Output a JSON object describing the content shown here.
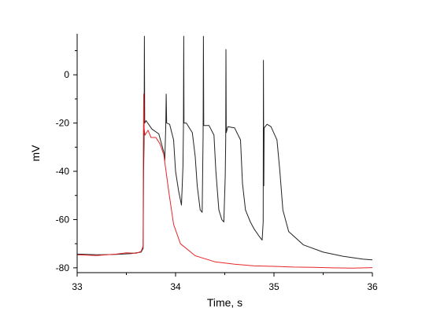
{
  "chart_data": {
    "type": "line",
    "xlabel": "Time, s",
    "ylabel": "mV",
    "xlim": [
      33,
      36
    ],
    "ylim": [
      -82,
      17
    ],
    "xticks": [
      33,
      34,
      35,
      36
    ],
    "yticks": [
      -80,
      -60,
      -40,
      -20,
      0
    ],
    "grid": false,
    "legend": "none",
    "colors": {
      "series1": "#222222",
      "series2": "#e8262a",
      "axis": "#000000"
    },
    "series": [
      {
        "color": "#222222",
        "points": [
          [
            33.0,
            -74.3
          ],
          [
            33.2,
            -74.6
          ],
          [
            33.4,
            -74.4
          ],
          [
            33.55,
            -74.1
          ],
          [
            33.65,
            -73.5
          ],
          [
            33.67,
            -72.0
          ],
          [
            33.675,
            -40.0
          ],
          [
            33.68,
            -28.0
          ],
          [
            33.683,
            16.0
          ],
          [
            33.686,
            -20.0
          ],
          [
            33.7,
            -19.0
          ],
          [
            33.76,
            -22.5
          ],
          [
            33.83,
            -24.5
          ],
          [
            33.88,
            -32.0
          ],
          [
            33.89,
            -35.5
          ],
          [
            33.9,
            -22.0
          ],
          [
            33.905,
            -8.0
          ],
          [
            33.91,
            -20.0
          ],
          [
            33.94,
            -20.5
          ],
          [
            33.98,
            -27.0
          ],
          [
            34.0,
            -40.0
          ],
          [
            34.03,
            -48.0
          ],
          [
            34.06,
            -54.0
          ],
          [
            34.075,
            -38.0
          ],
          [
            34.08,
            -22.0
          ],
          [
            34.083,
            16.0
          ],
          [
            34.086,
            -20.0
          ],
          [
            34.11,
            -20.0
          ],
          [
            34.17,
            -24.0
          ],
          [
            34.2,
            -34.0
          ],
          [
            34.22,
            -46.0
          ],
          [
            34.25,
            -56.0
          ],
          [
            34.27,
            -57.0
          ],
          [
            34.28,
            -25.0
          ],
          [
            34.283,
            16.0
          ],
          [
            34.286,
            -21.0
          ],
          [
            34.34,
            -21.0
          ],
          [
            34.39,
            -25.0
          ],
          [
            34.41,
            -40.0
          ],
          [
            34.44,
            -56.0
          ],
          [
            34.47,
            -60.0
          ],
          [
            34.49,
            -61.0
          ],
          [
            34.505,
            -42.0
          ],
          [
            34.51,
            -27.0
          ],
          [
            34.512,
            10.5
          ],
          [
            34.515,
            -24.0
          ],
          [
            34.53,
            -21.5
          ],
          [
            34.6,
            -22.0
          ],
          [
            34.66,
            -27.0
          ],
          [
            34.68,
            -45.0
          ],
          [
            34.71,
            -56.0
          ],
          [
            34.76,
            -61.0
          ],
          [
            34.8,
            -64.0
          ],
          [
            34.85,
            -67.0
          ],
          [
            34.88,
            -68.5
          ],
          [
            34.89,
            -61.0
          ],
          [
            34.893,
            6.0
          ],
          [
            34.897,
            -46.0
          ],
          [
            34.9,
            -22.0
          ],
          [
            34.93,
            -20.5
          ],
          [
            34.97,
            -21.5
          ],
          [
            35.03,
            -27.0
          ],
          [
            35.06,
            -40.0
          ],
          [
            35.09,
            -56.0
          ],
          [
            35.15,
            -65.0
          ],
          [
            35.3,
            -70.5
          ],
          [
            35.5,
            -73.5
          ],
          [
            35.7,
            -75.2
          ],
          [
            35.9,
            -76.4
          ],
          [
            36.0,
            -76.7
          ]
        ]
      },
      {
        "color": "#e8262a",
        "points": [
          [
            33.0,
            -74.6
          ],
          [
            33.2,
            -74.9
          ],
          [
            33.4,
            -74.3
          ],
          [
            33.5,
            -73.8
          ],
          [
            33.6,
            -74.0
          ],
          [
            33.65,
            -73.2
          ],
          [
            33.67,
            -71.0
          ],
          [
            33.673,
            -30.0
          ],
          [
            33.676,
            -8.0
          ],
          [
            33.68,
            -22.0
          ],
          [
            33.69,
            -25.0
          ],
          [
            33.72,
            -23.0
          ],
          [
            33.75,
            -26.0
          ],
          [
            33.8,
            -26.0
          ],
          [
            33.84,
            -28.5
          ],
          [
            33.88,
            -33.0
          ],
          [
            33.93,
            -48.0
          ],
          [
            33.98,
            -62.0
          ],
          [
            34.05,
            -70.0
          ],
          [
            34.2,
            -75.0
          ],
          [
            34.4,
            -77.5
          ],
          [
            34.6,
            -78.5
          ],
          [
            34.8,
            -79.2
          ],
          [
            35.0,
            -79.4
          ],
          [
            35.2,
            -79.7
          ],
          [
            35.4,
            -79.8
          ],
          [
            35.6,
            -80.0
          ],
          [
            35.8,
            -80.1
          ],
          [
            36.0,
            -79.9
          ]
        ]
      }
    ]
  }
}
